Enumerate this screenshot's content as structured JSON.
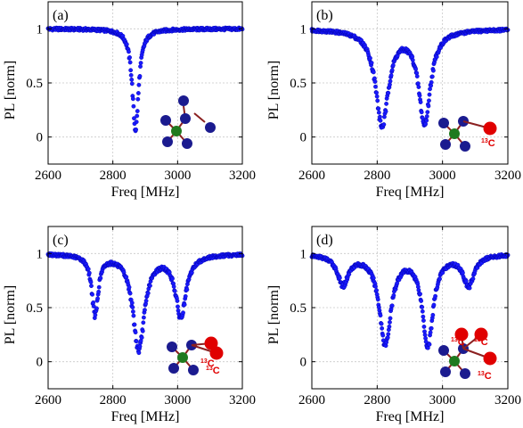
{
  "chart_data": [
    {
      "type": "scatter",
      "panel": "(a)",
      "xlabel": "Freq [MHz]",
      "ylabel": "PL  [norm]",
      "xlim": [
        2600,
        3200
      ],
      "ylim": [
        -0.25,
        1.25
      ],
      "xticks": [
        "2600",
        "2800",
        "3000",
        "3200"
      ],
      "yticks": [
        "0",
        "0.5",
        "1"
      ],
      "grid": true,
      "dips": [
        {
          "center": 2870,
          "depth": 0.93,
          "width": 12
        }
      ],
      "molecule": {
        "c13": []
      }
    },
    {
      "type": "scatter",
      "panel": "(b)",
      "xlabel": "Freq [MHz]",
      "ylabel": "PL  [norm]",
      "xlim": [
        2600,
        3200
      ],
      "ylim": [
        -0.25,
        1.25
      ],
      "xticks": [
        "2600",
        "2800",
        "3000",
        "3200"
      ],
      "yticks": [
        "0",
        "0.5",
        "1"
      ],
      "grid": true,
      "dips": [
        {
          "center": 2815,
          "depth": 0.88,
          "width": 24
        },
        {
          "center": 2945,
          "depth": 0.86,
          "width": 22
        }
      ],
      "molecule": {
        "c13": [
          {
            "sup": "13",
            "sym": "C"
          }
        ]
      }
    },
    {
      "type": "scatter",
      "panel": "(c)",
      "xlabel": "Freq [MHz]",
      "ylabel": "PL  [norm]",
      "xlim": [
        2600,
        3200
      ],
      "ylim": [
        -0.25,
        1.25
      ],
      "xticks": [
        "2600",
        "2800",
        "3000",
        "3200"
      ],
      "yticks": [
        "0",
        "0.5",
        "1"
      ],
      "grid": true,
      "dips": [
        {
          "center": 2745,
          "depth": 0.55,
          "width": 12
        },
        {
          "center": 2880,
          "depth": 0.88,
          "width": 22
        },
        {
          "center": 3010,
          "depth": 0.57,
          "width": 20
        }
      ],
      "molecule": {
        "c13": [
          {
            "sup": "13",
            "sym": "C"
          },
          {
            "sup": "13",
            "sym": "C"
          }
        ]
      }
    },
    {
      "type": "scatter",
      "panel": "(d)",
      "xlabel": "Freq [MHz]",
      "ylabel": "PL  [norm]",
      "xlim": [
        2600,
        3200
      ],
      "ylim": [
        -0.25,
        1.25
      ],
      "xticks": [
        "2600",
        "2800",
        "3000",
        "3200"
      ],
      "yticks": [
        "0",
        "0.5",
        "1"
      ],
      "grid": true,
      "dips": [
        {
          "center": 2695,
          "depth": 0.27,
          "width": 20
        },
        {
          "center": 2825,
          "depth": 0.82,
          "width": 22
        },
        {
          "center": 2955,
          "depth": 0.83,
          "width": 20
        },
        {
          "center": 3080,
          "depth": 0.28,
          "width": 20
        }
      ],
      "molecule": {
        "c13": [
          {
            "sup": "13",
            "sym": "C"
          },
          {
            "sup": "13",
            "sym": "C"
          },
          {
            "sup": "13",
            "sym": "C"
          }
        ]
      }
    }
  ]
}
